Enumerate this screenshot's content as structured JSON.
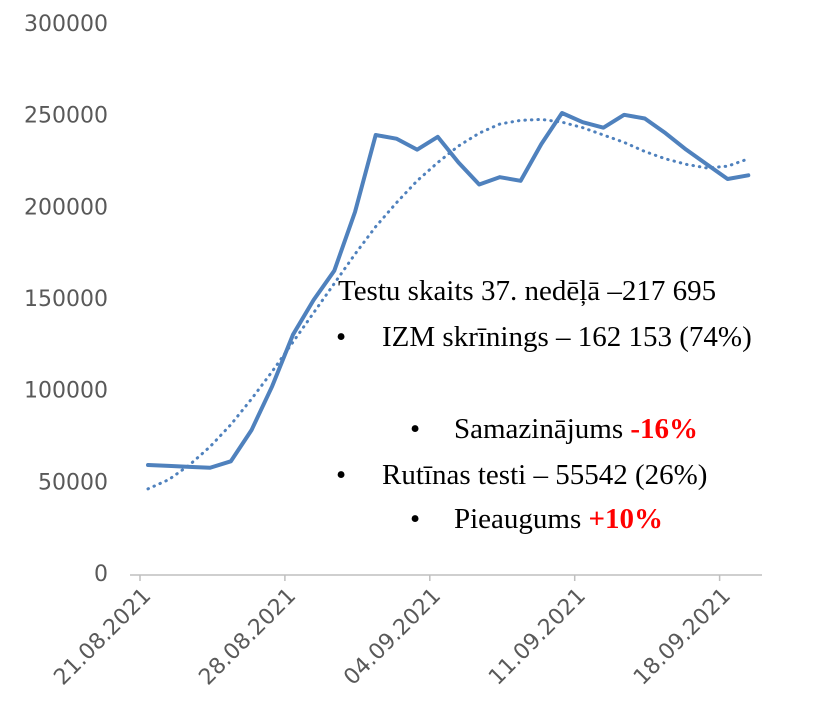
{
  "chart_data": {
    "type": "line",
    "categories": [
      "21.08.2021",
      null,
      null,
      null,
      null,
      null,
      null,
      "28.08.2021",
      null,
      null,
      null,
      null,
      null,
      null,
      "04.09.2021",
      null,
      null,
      null,
      null,
      null,
      null,
      "11.09.2021",
      null,
      null,
      null,
      null,
      null,
      null,
      "18.09.2021",
      null
    ],
    "series": [
      {
        "color": "#4f81bd",
        "style": "solid",
        "values": [
          60000,
          59500,
          59000,
          58500,
          62000,
          79000,
          103000,
          131000,
          150000,
          166000,
          198000,
          240000,
          238000,
          232000,
          239000,
          225000,
          213000,
          217000,
          215000,
          235000,
          252000,
          247000,
          244000,
          251000,
          249000,
          241000,
          232000,
          224000,
          216000,
          218000
        ]
      },
      {
        "color": "#4f81bd",
        "style": "dotted",
        "values": [
          47000,
          52000,
          60000,
          70000,
          82000,
          96000,
          111000,
          127000,
          143000,
          159000,
          175000,
          190000,
          203000,
          215000,
          225000,
          234000,
          241000,
          246000,
          248000,
          248500,
          247000,
          244000,
          240000,
          236000,
          231000,
          227000,
          224000,
          222000,
          223000,
          227000
        ]
      }
    ],
    "ylim": [
      0,
      300000
    ],
    "yticks": [
      0,
      50000,
      100000,
      150000,
      200000,
      250000,
      300000
    ],
    "grid": false,
    "annotation": {
      "title": "Testu skaits 37. nedēļā –217 695",
      "items": [
        {
          "text": "IZM skrīnings – 162 153 (74%)",
          "sub": {
            "text": "Samazinājums",
            "change": "-16%"
          }
        },
        {
          "text": "Rutīnas testi – 55542 (26%)",
          "sub": {
            "text": "Pieaugums",
            "change": "+10%"
          }
        }
      ]
    }
  }
}
